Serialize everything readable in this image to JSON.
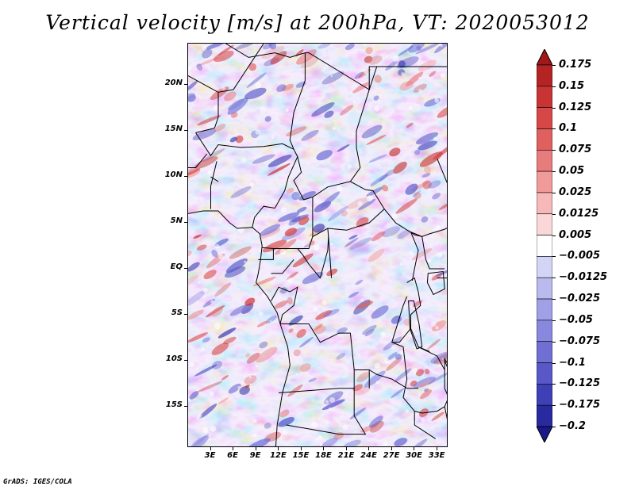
{
  "title": "Vertical velocity [m/s] at 200hPa, VT: 2020053012",
  "footer": "GrADS: IGES/COLA",
  "chart_data": {
    "type": "heatmap",
    "title": "Vertical velocity [m/s] at 200hPa, VT: 2020053012",
    "variable": "Vertical velocity",
    "units": "m/s",
    "level": "200hPa",
    "valid_time": "2020053012",
    "lon_range": [
      0,
      34.5
    ],
    "lat_range": [
      -19.5,
      24.5
    ],
    "lat_ticks": [
      {
        "value": 20,
        "label": "20N"
      },
      {
        "value": 15,
        "label": "15N"
      },
      {
        "value": 10,
        "label": "10N"
      },
      {
        "value": 5,
        "label": "5N"
      },
      {
        "value": 0,
        "label": "EQ"
      },
      {
        "value": -5,
        "label": "5S"
      },
      {
        "value": -10,
        "label": "10S"
      },
      {
        "value": -15,
        "label": "15S"
      }
    ],
    "lon_ticks": [
      {
        "value": 3,
        "label": "3E"
      },
      {
        "value": 6,
        "label": "6E"
      },
      {
        "value": 9,
        "label": "9E"
      },
      {
        "value": 12,
        "label": "12E"
      },
      {
        "value": 15,
        "label": "15E"
      },
      {
        "value": 18,
        "label": "18E"
      },
      {
        "value": 21,
        "label": "21E"
      },
      {
        "value": 24,
        "label": "24E"
      },
      {
        "value": 27,
        "label": "27E"
      },
      {
        "value": 30,
        "label": "30E"
      },
      {
        "value": 33,
        "label": "33E"
      }
    ],
    "colorbar": {
      "labels": [
        "0.175",
        "0.15",
        "0.125",
        "0.1",
        "0.075",
        "0.05",
        "0.025",
        "0.0125",
        "0.005",
        "−0.005",
        "−0.0125",
        "−0.025",
        "−0.05",
        "−0.075",
        "−0.1",
        "−0.125",
        "−0.175",
        "−0.2"
      ],
      "colors": [
        "#a01818",
        "#b42424",
        "#c83434",
        "#d64848",
        "#e06060",
        "#e87c7c",
        "#f09a9a",
        "#f6b8b8",
        "#fbd8d8",
        "#ffffff",
        "#d4d4f6",
        "#babaee",
        "#a0a0e6",
        "#8888de",
        "#7070d4",
        "#5858c8",
        "#4040b6",
        "#2a2aa0",
        "#18188a"
      ],
      "extends": "both"
    },
    "grid": false
  }
}
